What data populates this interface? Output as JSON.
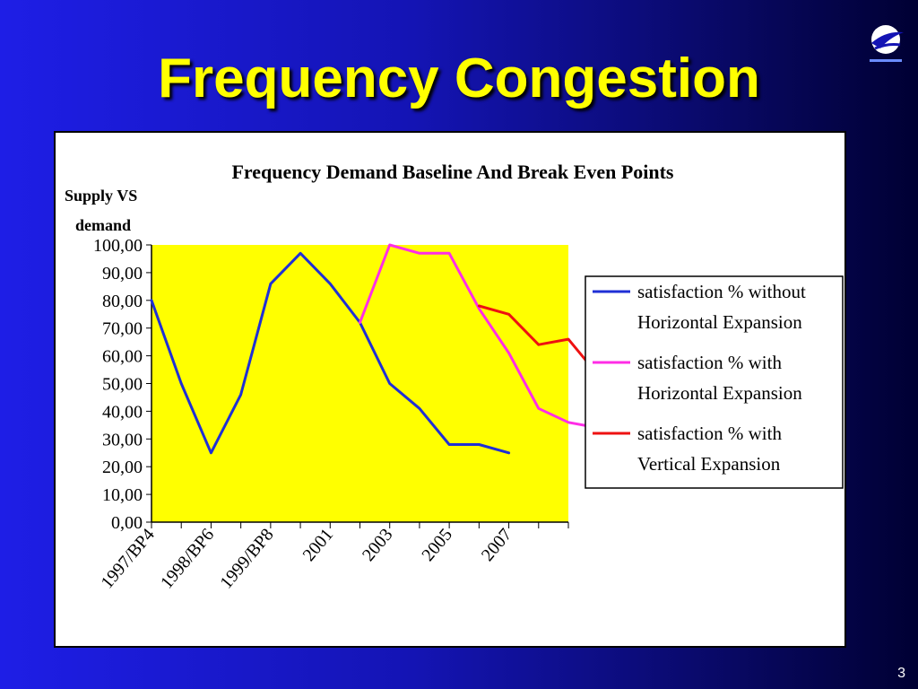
{
  "slide": {
    "title": "Frequency Congestion",
    "page_number": "3"
  },
  "icons": {
    "logo": "eurocontrol-logo-icon"
  },
  "colors": {
    "background": "#1414b4",
    "title": "#ffff00",
    "plot_area": "#ffff00",
    "series_without": "#1f2fd6",
    "series_horizontal": "#ff2de6",
    "series_vertical": "#ee1111"
  },
  "chart_data": {
    "type": "line",
    "title": "Frequency Demand Baseline And Break Even Points",
    "ylabel_line1": "Supply VS",
    "ylabel_line2": "demand",
    "xlabel": "",
    "ylim": [
      0,
      100
    ],
    "yticks": [
      "0,00",
      "10,00",
      "20,00",
      "30,00",
      "40,00",
      "50,00",
      "60,00",
      "70,00",
      "80,00",
      "90,00",
      "100,00"
    ],
    "x_labels": [
      "1997/BP4",
      "1998/BP6",
      "1999/BP8",
      "2001",
      "2003",
      "2005",
      "2007"
    ],
    "x_label_slots": [
      0,
      2,
      4,
      6,
      8,
      10,
      12
    ],
    "slots": 15,
    "grid": false,
    "legend_position": "right",
    "series": [
      {
        "name_line1": "satisfaction % without",
        "name_line2": "Horizontal Expansion",
        "color": "#1f2fd6",
        "start": 0,
        "values": [
          80,
          50,
          25,
          46,
          86,
          97,
          86,
          72,
          50,
          41,
          28,
          28,
          25
        ]
      },
      {
        "name_line1": "satisfaction % with",
        "name_line2": "Horizontal Expansion",
        "color": "#ff2de6",
        "start": 7,
        "values": [
          72,
          100,
          97,
          97,
          77,
          61,
          41,
          36,
          34
        ]
      },
      {
        "name_line1": "satisfaction % with",
        "name_line2": "Vertical Expansion",
        "color": "#ee1111",
        "start": 11,
        "values": [
          78,
          75,
          64,
          66,
          53
        ]
      }
    ]
  }
}
